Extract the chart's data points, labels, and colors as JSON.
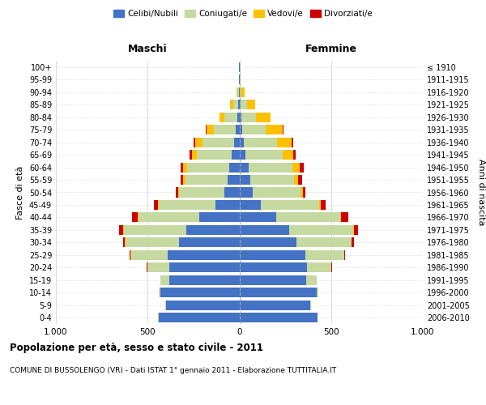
{
  "age_groups": [
    "0-4",
    "5-9",
    "10-14",
    "15-19",
    "20-24",
    "25-29",
    "30-34",
    "35-39",
    "40-44",
    "45-49",
    "50-54",
    "55-59",
    "60-64",
    "65-69",
    "70-74",
    "75-79",
    "80-84",
    "85-89",
    "90-94",
    "95-99",
    "100+"
  ],
  "birth_years": [
    "2006-2010",
    "2001-2005",
    "1996-2000",
    "1991-1995",
    "1986-1990",
    "1981-1985",
    "1976-1980",
    "1971-1975",
    "1966-1970",
    "1961-1965",
    "1956-1960",
    "1951-1955",
    "1946-1950",
    "1941-1945",
    "1936-1940",
    "1931-1935",
    "1926-1930",
    "1921-1925",
    "1916-1920",
    "1911-1915",
    "≤ 1910"
  ],
  "colors": {
    "celibi": "#4472c4",
    "coniugati": "#c5d9a0",
    "vedovi": "#ffc000",
    "divorziati": "#cc0000"
  },
  "maschi": {
    "celibi": [
      440,
      400,
      430,
      380,
      380,
      390,
      330,
      290,
      220,
      130,
      80,
      65,
      55,
      40,
      30,
      20,
      10,
      5,
      2,
      1,
      1
    ],
    "coniugati": [
      2,
      5,
      10,
      50,
      120,
      200,
      290,
      340,
      330,
      310,
      250,
      230,
      230,
      190,
      170,
      120,
      70,
      30,
      8,
      2,
      1
    ],
    "vedovi": [
      0,
      0,
      0,
      1,
      2,
      2,
      3,
      5,
      5,
      5,
      5,
      10,
      20,
      30,
      40,
      40,
      30,
      15,
      5,
      1,
      0
    ],
    "divorziati": [
      0,
      0,
      0,
      1,
      3,
      5,
      10,
      20,
      30,
      20,
      12,
      15,
      15,
      12,
      10,
      5,
      0,
      0,
      0,
      0,
      0
    ]
  },
  "femmine": {
    "celibi": [
      425,
      385,
      420,
      365,
      370,
      360,
      310,
      270,
      200,
      115,
      75,
      60,
      50,
      35,
      25,
      15,
      10,
      5,
      2,
      1,
      1
    ],
    "coniugati": [
      2,
      5,
      12,
      55,
      130,
      210,
      300,
      350,
      350,
      320,
      260,
      240,
      240,
      200,
      180,
      130,
      80,
      35,
      10,
      2,
      1
    ],
    "vedovi": [
      0,
      0,
      0,
      1,
      1,
      2,
      3,
      4,
      5,
      8,
      10,
      20,
      40,
      60,
      80,
      90,
      80,
      45,
      15,
      2,
      1
    ],
    "divorziati": [
      0,
      0,
      0,
      1,
      3,
      6,
      12,
      25,
      40,
      25,
      15,
      20,
      20,
      10,
      8,
      5,
      2,
      0,
      0,
      0,
      0
    ]
  },
  "title1": "Popolazione per età, sesso e stato civile - 2011",
  "title2": "COMUNE DI BUSSOLENGO (VR) - Dati ISTAT 1° gennaio 2011 - Elaborazione TUTTITALIA.IT",
  "xlabel_left": "Maschi",
  "xlabel_right": "Femmine",
  "ylabel_left": "Fasce di età",
  "ylabel_right": "Anni di nascita",
  "legend_labels": [
    "Celibi/Nubili",
    "Coniugati/e",
    "Vedovi/e",
    "Divorziati/e"
  ],
  "xlim": 1000,
  "xticks": [
    -1000,
    -500,
    0,
    500,
    1000
  ],
  "xticklabels": [
    "1.000",
    "500",
    "0",
    "500",
    "1.000"
  ],
  "bg_color": "#ffffff",
  "grid_color": "#cccccc"
}
